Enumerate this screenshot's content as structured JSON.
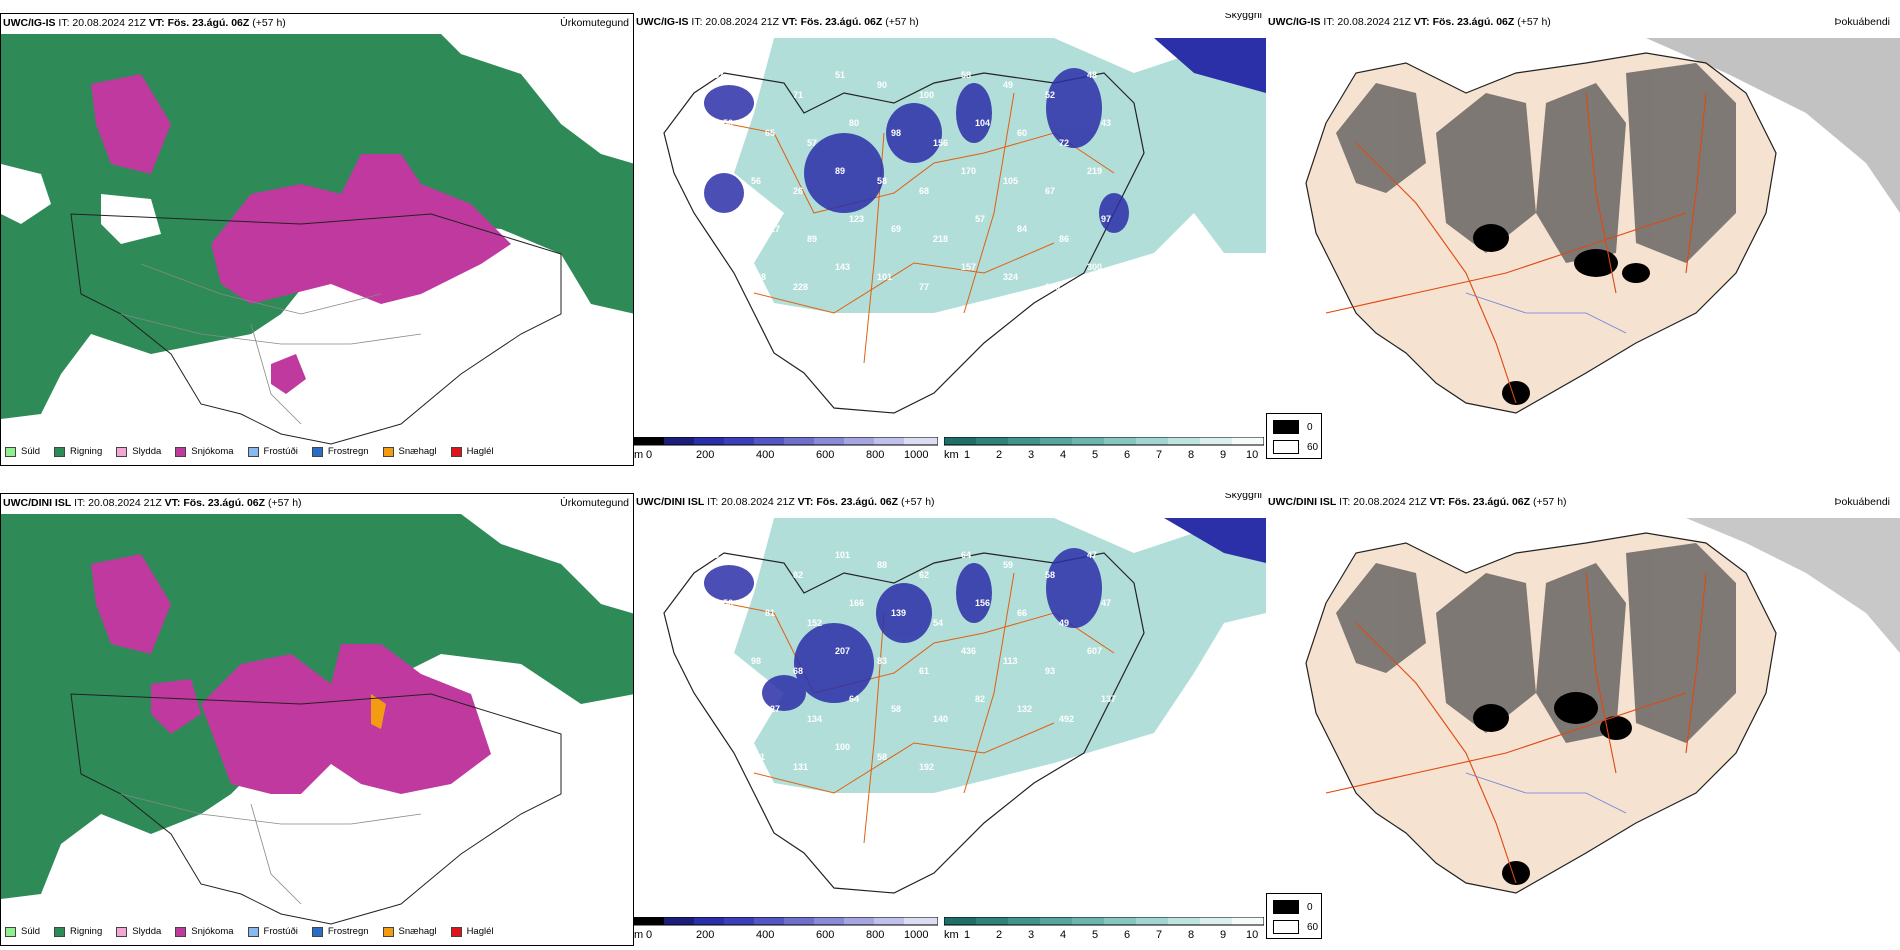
{
  "panels": [
    {
      "model": "UWC/IG-IS",
      "it": "IT: 20.08.2024 21Z",
      "vt": "VT: Fös. 23.ágú. 06Z",
      "lead": "(+57 h)",
      "title": "Úrkomutegund"
    },
    {
      "model": "UWC/IG-IS",
      "it": "IT: 20.08.2024 21Z",
      "vt": "VT: Fös. 23.ágú. 06Z",
      "lead": "(+57 h)",
      "title": "Skyggni"
    },
    {
      "model": "UWC/IG-IS",
      "it": "IT: 20.08.2024 21Z",
      "vt": "VT: Fös. 23.ágú. 06Z",
      "lead": "(+57 h)",
      "title": "Þokuábendi"
    },
    {
      "model": "UWC/DINI ISL",
      "it": "IT: 20.08.2024 21Z",
      "vt": "VT: Fös. 23.ágú. 06Z",
      "lead": "(+57 h)",
      "title": "Úrkomutegund"
    },
    {
      "model": "UWC/DINI ISL",
      "it": "IT: 20.08.2024 21Z",
      "vt": "VT: Fös. 23.ágú. 06Z",
      "lead": "(+57 h)",
      "title": "Skyggni"
    },
    {
      "model": "UWC/DINI ISL",
      "it": "IT: 20.08.2024 21Z",
      "vt": "VT: Fös. 23.ágú. 06Z",
      "lead": "(+57 h)",
      "title": "Þokuábendi"
    }
  ],
  "precip_legend": [
    {
      "label": "Súld",
      "color": "#90ee90"
    },
    {
      "label": "Rigning",
      "color": "#2e8b57"
    },
    {
      "label": "Slydda",
      "color": "#f4a6d7"
    },
    {
      "label": "Snjókoma",
      "color": "#c0399e"
    },
    {
      "label": "Frostúði",
      "color": "#87b8f0"
    },
    {
      "label": "Frostregn",
      "color": "#2b6cc4"
    },
    {
      "label": "Snæhagl",
      "color": "#f39c12"
    },
    {
      "label": "Haglél",
      "color": "#e0131a"
    }
  ],
  "m_bar": {
    "unit": "m",
    "ticks": [
      "0",
      "200",
      "400",
      "600",
      "800",
      "1000"
    ]
  },
  "km_bar": {
    "unit": "km",
    "ticks": [
      "1",
      "2",
      "3",
      "4",
      "5",
      "6",
      "7",
      "8",
      "9",
      "10"
    ]
  },
  "fog_legend": [
    {
      "label": "0",
      "color": "#000000"
    },
    {
      "label": "60",
      "color": "#ffffff"
    }
  ],
  "vis_labels_top": [
    "157",
    "63",
    "71",
    "51",
    "90",
    "100",
    "58",
    "49",
    "52",
    "48",
    "50",
    "65",
    "57",
    "80",
    "98",
    "156",
    "104",
    "60",
    "72",
    "43",
    "43",
    "56",
    "26",
    "89",
    "58",
    "68",
    "170",
    "105",
    "67",
    "219",
    "175",
    "127",
    "89",
    "123",
    "69",
    "218",
    "57",
    "84",
    "86",
    "97",
    "92",
    "268",
    "228",
    "143",
    "101",
    "77",
    "157",
    "324",
    "170",
    "300",
    "92",
    "55"
  ],
  "vis_labels_bot": [
    "83",
    "76",
    "82",
    "101",
    "88",
    "62",
    "64",
    "59",
    "58",
    "47",
    "56",
    "81",
    "152",
    "166",
    "139",
    "54",
    "156",
    "66",
    "49",
    "47",
    "65",
    "98",
    "68",
    "207",
    "83",
    "61",
    "436",
    "113",
    "93",
    "607",
    "267",
    "227",
    "134",
    "64",
    "58",
    "140",
    "82",
    "132",
    "492",
    "137",
    "86",
    "111",
    "131",
    "100",
    "58",
    "192"
  ]
}
